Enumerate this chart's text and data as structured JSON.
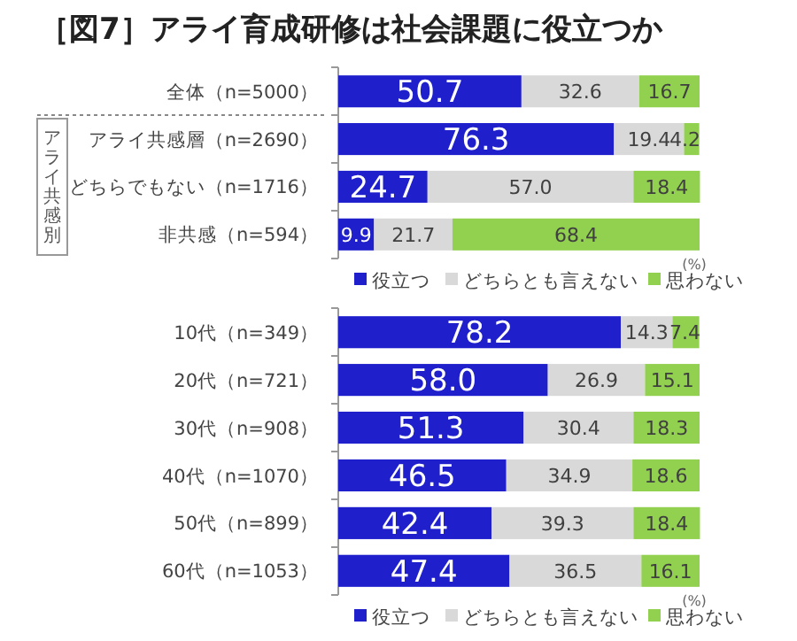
{
  "chart_data": [
    {
      "type": "bar",
      "orientation": "horizontal",
      "stacked": true,
      "title": "［図7］アライ育成研修は社会課題に役立つか",
      "categories": [
        "全体（n=5000）",
        "アライ共感層（n=2690）",
        "どちらでもない（n=1716）",
        "非共感（n=594）"
      ],
      "series": [
        {
          "name": "役立つ",
          "color": "#1f1fcc",
          "values": [
            50.7,
            76.3,
            24.7,
            9.9
          ],
          "value_labels": [
            "50.7",
            "76.3",
            "24.7",
            "9.9"
          ]
        },
        {
          "name": "どちらとも言えない",
          "color": "#d9d9d9",
          "values": [
            32.6,
            19.4,
            57.0,
            21.7
          ],
          "value_labels": [
            "32.6",
            "19.4",
            "57.0",
            "21.7"
          ]
        },
        {
          "name": "思わない",
          "color": "#92d050",
          "values": [
            16.7,
            4.2,
            18.4,
            68.4
          ],
          "value_labels": [
            "16.7",
            "4.2",
            "18.4",
            "68.4"
          ]
        }
      ],
      "xlim": [
        0,
        100
      ],
      "tick_labels": "y",
      "legend": "bottom",
      "annotations": [
        "アライ共感別",
        "(%)"
      ]
    },
    {
      "type": "bar",
      "orientation": "horizontal",
      "stacked": true,
      "categories": [
        "10代（n=349）",
        "20代（n=721）",
        "30代（n=908）",
        "40代（n=1070）",
        "50代（n=899）",
        "60代（n=1053）"
      ],
      "series": [
        {
          "name": "役立つ",
          "color": "#1f1fcc",
          "values": [
            78.2,
            58.0,
            51.3,
            46.5,
            42.4,
            47.4
          ],
          "value_labels": [
            "78.2",
            "58.0",
            "51.3",
            "46.5",
            "42.4",
            "47.4"
          ]
        },
        {
          "name": "どちらとも言えない",
          "color": "#d9d9d9",
          "values": [
            14.3,
            26.9,
            30.4,
            34.9,
            39.3,
            36.5
          ],
          "value_labels": [
            "14.3",
            "26.9",
            "30.4",
            "34.9",
            "39.3",
            "36.5"
          ]
        },
        {
          "name": "思わない",
          "color": "#92d050",
          "values": [
            7.4,
            15.1,
            18.3,
            18.6,
            18.4,
            16.1
          ],
          "value_labels": [
            "7.4",
            "15.1",
            "18.3",
            "18.6",
            "18.4",
            "16.1"
          ]
        }
      ],
      "xlim": [
        0,
        100
      ],
      "tick_labels": "y",
      "legend": "bottom",
      "annotations": [
        "(%)"
      ]
    }
  ]
}
